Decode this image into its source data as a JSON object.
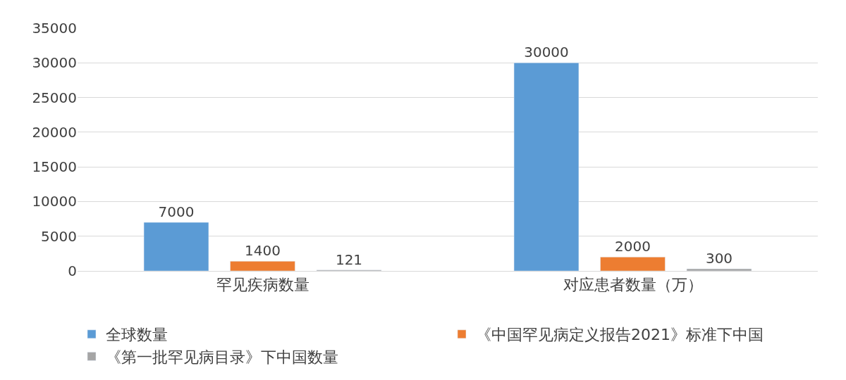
{
  "chart_data": {
    "type": "bar",
    "categories": [
      "罕见疾病数量",
      "对应患者数量（万）"
    ],
    "series": [
      {
        "name": "全球数量",
        "color": "#5b9bd5",
        "values": [
          7000,
          30000
        ]
      },
      {
        "name": "《中国罕见病定义报告2021》标准下中国",
        "color": "#ed7d31",
        "values": [
          1400,
          2000
        ]
      },
      {
        "name": "《第一批罕见病目录》下中国数量",
        "color": "#a5a5a5",
        "values": [
          121,
          300
        ]
      }
    ],
    "ylim": [
      0,
      35000
    ],
    "yticks": [
      0,
      5000,
      10000,
      15000,
      20000,
      25000,
      30000,
      35000
    ],
    "grid": "y",
    "legend": "bottom",
    "data_labels": true
  }
}
